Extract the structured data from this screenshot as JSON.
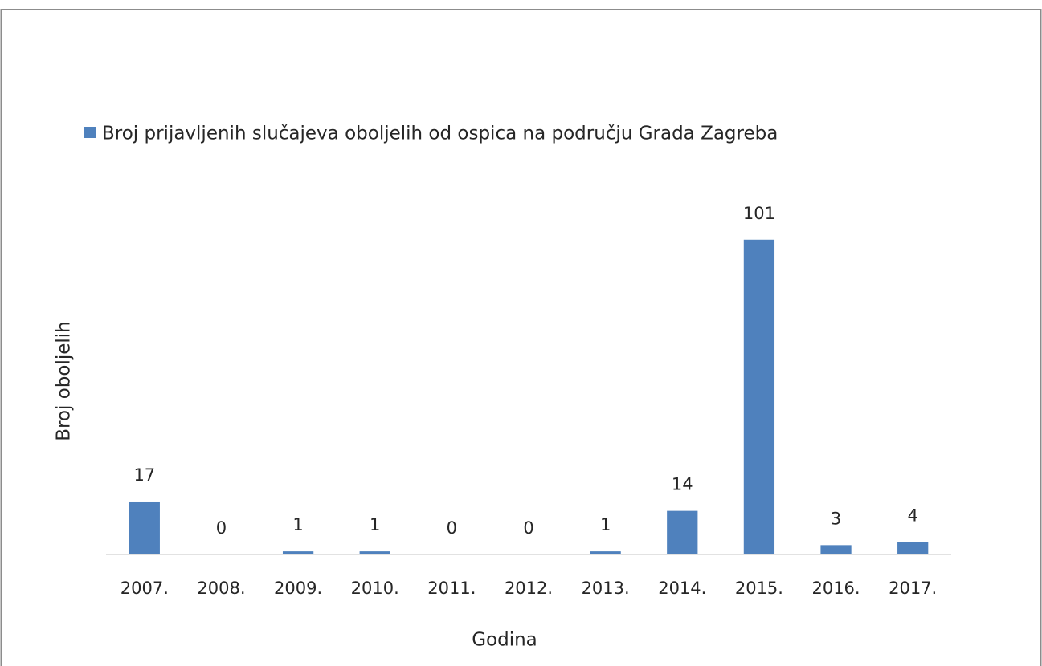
{
  "chart_data": {
    "type": "bar",
    "x_label": "Godina",
    "y_label": "Broj oboljelih",
    "categories": [
      "2007.",
      "2008.",
      "2009.",
      "2010.",
      "2011.",
      "2012.",
      "2013.",
      "2014.",
      "2015.",
      "2016.",
      "2017."
    ],
    "series": [
      {
        "name": "Broj prijavljenih slučajeva oboljelih od ospica na području Grada Zagreba",
        "color": "#4f81bd",
        "values": [
          17,
          0,
          1,
          1,
          0,
          0,
          1,
          14,
          101,
          3,
          4
        ]
      }
    ],
    "ylim": [
      0,
      120
    ],
    "legend": "top-left",
    "data_labels": true
  }
}
